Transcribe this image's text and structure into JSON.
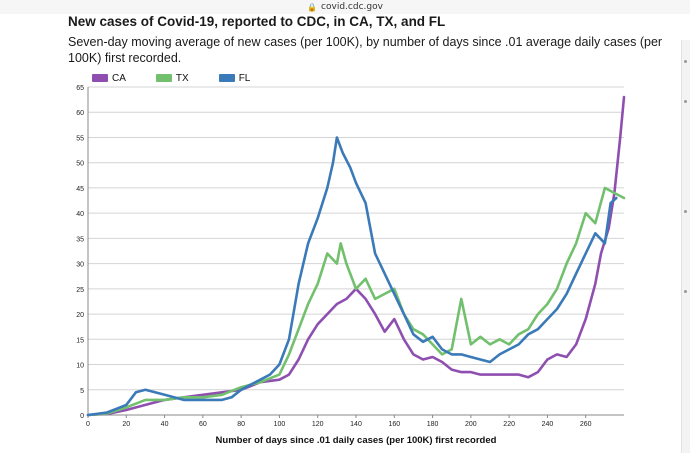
{
  "browser": {
    "url": "covid.cdc.gov"
  },
  "chart_data": {
    "type": "line",
    "title": "New cases of Covid-19, reported to CDC, in CA, TX, and FL",
    "subtitle": "Seven-day moving average of new cases (per 100K), by number of days since .01 average daily cases (per 100K) first recorded.",
    "xlabel": "Number of days since .01 daily cases (per 100K) first recorded",
    "ylabel": "",
    "xlim": [
      0,
      280
    ],
    "ylim": [
      0,
      65
    ],
    "x_ticks": [
      "0",
      "20",
      "40",
      "60",
      "80",
      "100",
      "120",
      "140",
      "160",
      "180",
      "200",
      "220",
      "240",
      "260"
    ],
    "y_ticks": [
      "0",
      "5",
      "10",
      "15",
      "20",
      "25",
      "30",
      "35",
      "40",
      "45",
      "50",
      "55",
      "60",
      "65"
    ],
    "grid": "horizontal",
    "legend": "top-left",
    "series": [
      {
        "name": "CA",
        "color": "#8e4fb0",
        "points": [
          [
            0,
            0
          ],
          [
            10,
            0.2
          ],
          [
            20,
            1
          ],
          [
            30,
            2
          ],
          [
            40,
            3
          ],
          [
            50,
            3.5
          ],
          [
            60,
            4
          ],
          [
            70,
            4.5
          ],
          [
            80,
            5
          ],
          [
            90,
            6.5
          ],
          [
            100,
            7
          ],
          [
            105,
            8
          ],
          [
            110,
            11
          ],
          [
            115,
            15
          ],
          [
            120,
            18
          ],
          [
            125,
            20
          ],
          [
            130,
            22
          ],
          [
            135,
            23
          ],
          [
            140,
            25
          ],
          [
            145,
            23
          ],
          [
            150,
            20
          ],
          [
            155,
            16.5
          ],
          [
            160,
            19
          ],
          [
            165,
            15
          ],
          [
            170,
            12
          ],
          [
            175,
            11
          ],
          [
            180,
            11.5
          ],
          [
            185,
            10.5
          ],
          [
            190,
            9
          ],
          [
            195,
            8.5
          ],
          [
            200,
            8.5
          ],
          [
            205,
            8
          ],
          [
            210,
            8
          ],
          [
            215,
            8
          ],
          [
            220,
            8
          ],
          [
            225,
            8
          ],
          [
            230,
            7.5
          ],
          [
            235,
            8.5
          ],
          [
            240,
            11
          ],
          [
            245,
            12
          ],
          [
            250,
            11.5
          ],
          [
            255,
            14
          ],
          [
            260,
            19
          ],
          [
            265,
            26
          ],
          [
            268,
            32
          ],
          [
            272,
            37
          ],
          [
            275,
            44
          ],
          [
            278,
            55
          ],
          [
            280,
            63
          ]
        ]
      },
      {
        "name": "TX",
        "color": "#72c06d",
        "points": [
          [
            0,
            0
          ],
          [
            10,
            0.3
          ],
          [
            20,
            1.5
          ],
          [
            30,
            3
          ],
          [
            40,
            3
          ],
          [
            50,
            3.5
          ],
          [
            60,
            3.5
          ],
          [
            70,
            4
          ],
          [
            80,
            5.5
          ],
          [
            90,
            6.5
          ],
          [
            100,
            8
          ],
          [
            105,
            12
          ],
          [
            110,
            17
          ],
          [
            115,
            22
          ],
          [
            120,
            26
          ],
          [
            125,
            32
          ],
          [
            130,
            30
          ],
          [
            132,
            34
          ],
          [
            135,
            30
          ],
          [
            140,
            25
          ],
          [
            145,
            27
          ],
          [
            150,
            23
          ],
          [
            155,
            24
          ],
          [
            160,
            25
          ],
          [
            165,
            20
          ],
          [
            170,
            17
          ],
          [
            175,
            16
          ],
          [
            180,
            14
          ],
          [
            185,
            12
          ],
          [
            190,
            13
          ],
          [
            195,
            23
          ],
          [
            200,
            14
          ],
          [
            205,
            15.5
          ],
          [
            210,
            14
          ],
          [
            215,
            15
          ],
          [
            220,
            14
          ],
          [
            225,
            16
          ],
          [
            230,
            17
          ],
          [
            235,
            20
          ],
          [
            240,
            22
          ],
          [
            245,
            25
          ],
          [
            250,
            30
          ],
          [
            255,
            34
          ],
          [
            260,
            40
          ],
          [
            265,
            38
          ],
          [
            270,
            45
          ],
          [
            275,
            44
          ],
          [
            280,
            43
          ]
        ]
      },
      {
        "name": "FL",
        "color": "#3a7ab8",
        "points": [
          [
            0,
            0
          ],
          [
            10,
            0.5
          ],
          [
            20,
            2
          ],
          [
            25,
            4.5
          ],
          [
            30,
            5
          ],
          [
            35,
            4.5
          ],
          [
            40,
            4
          ],
          [
            50,
            3
          ],
          [
            60,
            3
          ],
          [
            70,
            3
          ],
          [
            75,
            3.5
          ],
          [
            80,
            5
          ],
          [
            85,
            6
          ],
          [
            90,
            7
          ],
          [
            95,
            8
          ],
          [
            100,
            10
          ],
          [
            105,
            15
          ],
          [
            110,
            26
          ],
          [
            115,
            34
          ],
          [
            120,
            39
          ],
          [
            125,
            45
          ],
          [
            128,
            50
          ],
          [
            130,
            55
          ],
          [
            133,
            52
          ],
          [
            137,
            49
          ],
          [
            140,
            46
          ],
          [
            145,
            42
          ],
          [
            150,
            32
          ],
          [
            155,
            28
          ],
          [
            160,
            24
          ],
          [
            165,
            20
          ],
          [
            170,
            16
          ],
          [
            175,
            14.5
          ],
          [
            180,
            15.5
          ],
          [
            185,
            13
          ],
          [
            190,
            12
          ],
          [
            195,
            12
          ],
          [
            200,
            11.5
          ],
          [
            205,
            11
          ],
          [
            210,
            10.5
          ],
          [
            215,
            12
          ],
          [
            220,
            13
          ],
          [
            225,
            14
          ],
          [
            230,
            16
          ],
          [
            235,
            17
          ],
          [
            240,
            19
          ],
          [
            245,
            21
          ],
          [
            250,
            24
          ],
          [
            255,
            28
          ],
          [
            260,
            32
          ],
          [
            265,
            36
          ],
          [
            270,
            34
          ],
          [
            273,
            42
          ],
          [
            276,
            43
          ]
        ]
      }
    ]
  }
}
